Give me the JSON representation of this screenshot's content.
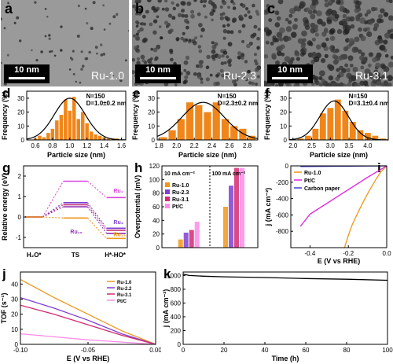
{
  "panel_letters": [
    "a",
    "b",
    "c",
    "d",
    "e",
    "f",
    "g",
    "h",
    "i",
    "j",
    "k"
  ],
  "tem": [
    {
      "scale": "10 nm",
      "sample": "Ru-1.0"
    },
    {
      "scale": "10 nm",
      "sample": "Ru-2.3"
    },
    {
      "scale": "10 nm",
      "sample": "Ru-3.1"
    }
  ],
  "chart_data": [
    {
      "panel": "d",
      "type": "bar",
      "xlabel": "Particle size (nm)",
      "ylabel": "Frequency (%)",
      "annotation": [
        "N=150",
        "D=1.0±0.2 nm"
      ],
      "xlim": [
        0.5,
        1.65
      ],
      "ylim": [
        0,
        35
      ],
      "x": [
        0.6,
        0.65,
        0.7,
        0.75,
        0.8,
        0.85,
        0.9,
        0.95,
        1.0,
        1.05,
        1.1,
        1.15,
        1.2,
        1.25,
        1.3,
        1.35,
        1.4,
        1.45,
        1.5,
        1.55
      ],
      "values": [
        1,
        3,
        2,
        5,
        8,
        14,
        18,
        29,
        21,
        31,
        15,
        20,
        12,
        6,
        4,
        3,
        2,
        1,
        1,
        1
      ],
      "fit": {
        "mean": 1.0,
        "sd": 0.18,
        "peak": 30
      },
      "xticks": [
        0.6,
        0.8,
        1.0,
        1.2,
        1.4,
        1.6
      ],
      "yticks": [
        0,
        10,
        20,
        30
      ]
    },
    {
      "panel": "e",
      "type": "bar",
      "xlabel": "Particle size (nm)",
      "ylabel": "Frequency (%)",
      "annotation": [
        "N=150",
        "D=2.3±0.2 nm"
      ],
      "xlim": [
        1.78,
        2.92
      ],
      "ylim": [
        0,
        35
      ],
      "x": [
        1.85,
        1.95,
        2.05,
        2.15,
        2.25,
        2.35,
        2.45,
        2.55,
        2.65,
        2.75,
        2.85
      ],
      "values": [
        2,
        7,
        15,
        27,
        25,
        20,
        27,
        15,
        10,
        8,
        3
      ],
      "fit": {
        "mean": 2.3,
        "sd": 0.24,
        "peak": 27
      },
      "xticks": [
        1.8,
        2.0,
        2.2,
        2.4,
        2.6,
        2.8
      ],
      "yticks": [
        0,
        10,
        20,
        30
      ]
    },
    {
      "panel": "f",
      "type": "bar",
      "xlabel": "Particle size (nm)",
      "ylabel": "Frequency (%)",
      "annotation": [
        "N=150",
        "D=3.1±0.4 nm"
      ],
      "xlim": [
        1.9,
        4.55
      ],
      "ylim": [
        0,
        35
      ],
      "x": [
        2.2,
        2.4,
        2.6,
        2.8,
        3.0,
        3.2,
        3.4,
        3.6,
        3.8,
        4.0,
        4.2,
        4.4
      ],
      "values": [
        1,
        3,
        8,
        19,
        23,
        29,
        21,
        13,
        7,
        5,
        3,
        1
      ],
      "fit": {
        "mean": 3.1,
        "sd": 0.38,
        "peak": 28
      },
      "xticks": [
        2.0,
        2.5,
        3.0,
        3.5,
        4.0
      ],
      "yticks": [
        0,
        10,
        20,
        30
      ]
    },
    {
      "panel": "g",
      "type": "line",
      "xlabel": "",
      "ylabel": "Relative energy (eV)",
      "ylim": [
        -1.5,
        2.5
      ],
      "yticks": [
        -1,
        0,
        1,
        2
      ],
      "states": [
        "H₂O*",
        "TS",
        "H*-HO*"
      ],
      "series": [
        {
          "name": "Ru₁",
          "color": "#d946d9",
          "values": [
            0,
            1.75,
            0.95
          ]
        },
        {
          "name": "Ru₃",
          "color": "#7e3fd4",
          "values": [
            0,
            0.7,
            -0.55
          ]
        },
        {
          "name": "Ru₃",
          "color": "#c03070",
          "values": [
            0,
            0.6,
            -0.65
          ]
        },
        {
          "name": "Ru₁₀",
          "color": "#8d2fb8",
          "values": [
            0,
            0.5,
            -0.8
          ]
        },
        {
          "name": "Ru₁₉",
          "color": "#f0961a",
          "values": [
            0,
            -0.05,
            -1.05
          ]
        }
      ]
    },
    {
      "panel": "h",
      "type": "bar",
      "xlabel": "",
      "ylabel": "Overpotential (mV)",
      "ylim": [
        0,
        120
      ],
      "yticks": [
        0,
        20,
        40,
        60,
        80,
        100,
        120
      ],
      "groups": [
        "10 mA cm⁻²",
        "100 mA cm⁻²"
      ],
      "series": [
        {
          "name": "Ru-1.0",
          "color": "#f0961a",
          "values": [
            12,
            60
          ]
        },
        {
          "name": "Ru-2.3",
          "color": "#7e3fd4",
          "values": [
            22,
            91
          ]
        },
        {
          "name": "Ru-3.1",
          "color": "#d42a70",
          "values": [
            26,
            117
          ]
        },
        {
          "name": "Pt/C",
          "color": "#ff8be8",
          "values": [
            38,
            117
          ]
        }
      ]
    },
    {
      "panel": "i",
      "type": "line",
      "xlabel": "E (V vs RHE)",
      "ylabel": "j (mA cm⁻²)",
      "xlim": [
        -0.5,
        0.0
      ],
      "ylim": [
        -1000,
        0
      ],
      "xticks": [
        -0.4,
        -0.2,
        0.0
      ],
      "yticks": [
        0,
        -200,
        -400,
        -600,
        -800
      ],
      "series": [
        {
          "name": "Ru-1.0",
          "color": "#f0961a",
          "x": [
            0.0,
            -0.03,
            -0.06,
            -0.09,
            -0.12,
            -0.15,
            -0.18,
            -0.2,
            -0.22
          ],
          "y": [
            0,
            -70,
            -180,
            -300,
            -430,
            -570,
            -720,
            -850,
            -1000
          ]
        },
        {
          "name": "Pt/C",
          "color": "#e020e0",
          "x": [
            0.0,
            -0.1,
            -0.2,
            -0.3,
            -0.4,
            -0.45
          ],
          "y": [
            0,
            -140,
            -290,
            -440,
            -590,
            -740
          ]
        },
        {
          "name": "Carbon paper",
          "color": "#3f3fd4",
          "x": [
            0.0,
            -0.2,
            -0.45
          ],
          "y": [
            0,
            -4,
            -8
          ]
        }
      ]
    },
    {
      "panel": "j",
      "type": "line",
      "xlabel": "E (V vs RHE)",
      "ylabel": "TOF (s⁻¹)",
      "xlim": [
        -0.1,
        0.0
      ],
      "ylim": [
        0,
        48
      ],
      "xticks": [
        -0.1,
        -0.05,
        0.0
      ],
      "yticks": [
        0,
        10,
        20,
        30,
        40
      ],
      "series": [
        {
          "name": "Ru-1.0",
          "color": "#f0961a",
          "x": [
            -0.1,
            -0.075,
            -0.05,
            -0.025,
            0.0
          ],
          "y": [
            43,
            31,
            20,
            9,
            0
          ]
        },
        {
          "name": "Ru-2.2",
          "color": "#7e3fd4",
          "x": [
            -0.1,
            -0.075,
            -0.05,
            -0.025,
            0.0
          ],
          "y": [
            31,
            24,
            16,
            7,
            0
          ]
        },
        {
          "name": "Ru-3.1",
          "color": "#d42a70",
          "x": [
            -0.1,
            -0.075,
            -0.05,
            -0.025,
            0.0
          ],
          "y": [
            26,
            20,
            13,
            6,
            0
          ]
        },
        {
          "name": "Pt/C",
          "color": "#ff8be8",
          "x": [
            -0.1,
            -0.075,
            -0.05,
            -0.025,
            0.0
          ],
          "y": [
            7,
            5,
            3,
            1.5,
            0
          ]
        }
      ]
    },
    {
      "panel": "k",
      "type": "line",
      "xlabel": "Time (h)",
      "ylabel": "j (mA cm⁻²)",
      "xlim": [
        0,
        100
      ],
      "ylim": [
        0,
        1050
      ],
      "xticks": [
        0,
        20,
        40,
        60,
        80,
        100
      ],
      "yticks": [
        0,
        200,
        400,
        600,
        800,
        1000
      ],
      "series": [
        {
          "name": "",
          "color": "#000000",
          "x": [
            0,
            3,
            10,
            20,
            40,
            60,
            80,
            100
          ],
          "y": [
            1020,
            1000,
            990,
            980,
            970,
            955,
            945,
            930
          ]
        }
      ]
    }
  ]
}
